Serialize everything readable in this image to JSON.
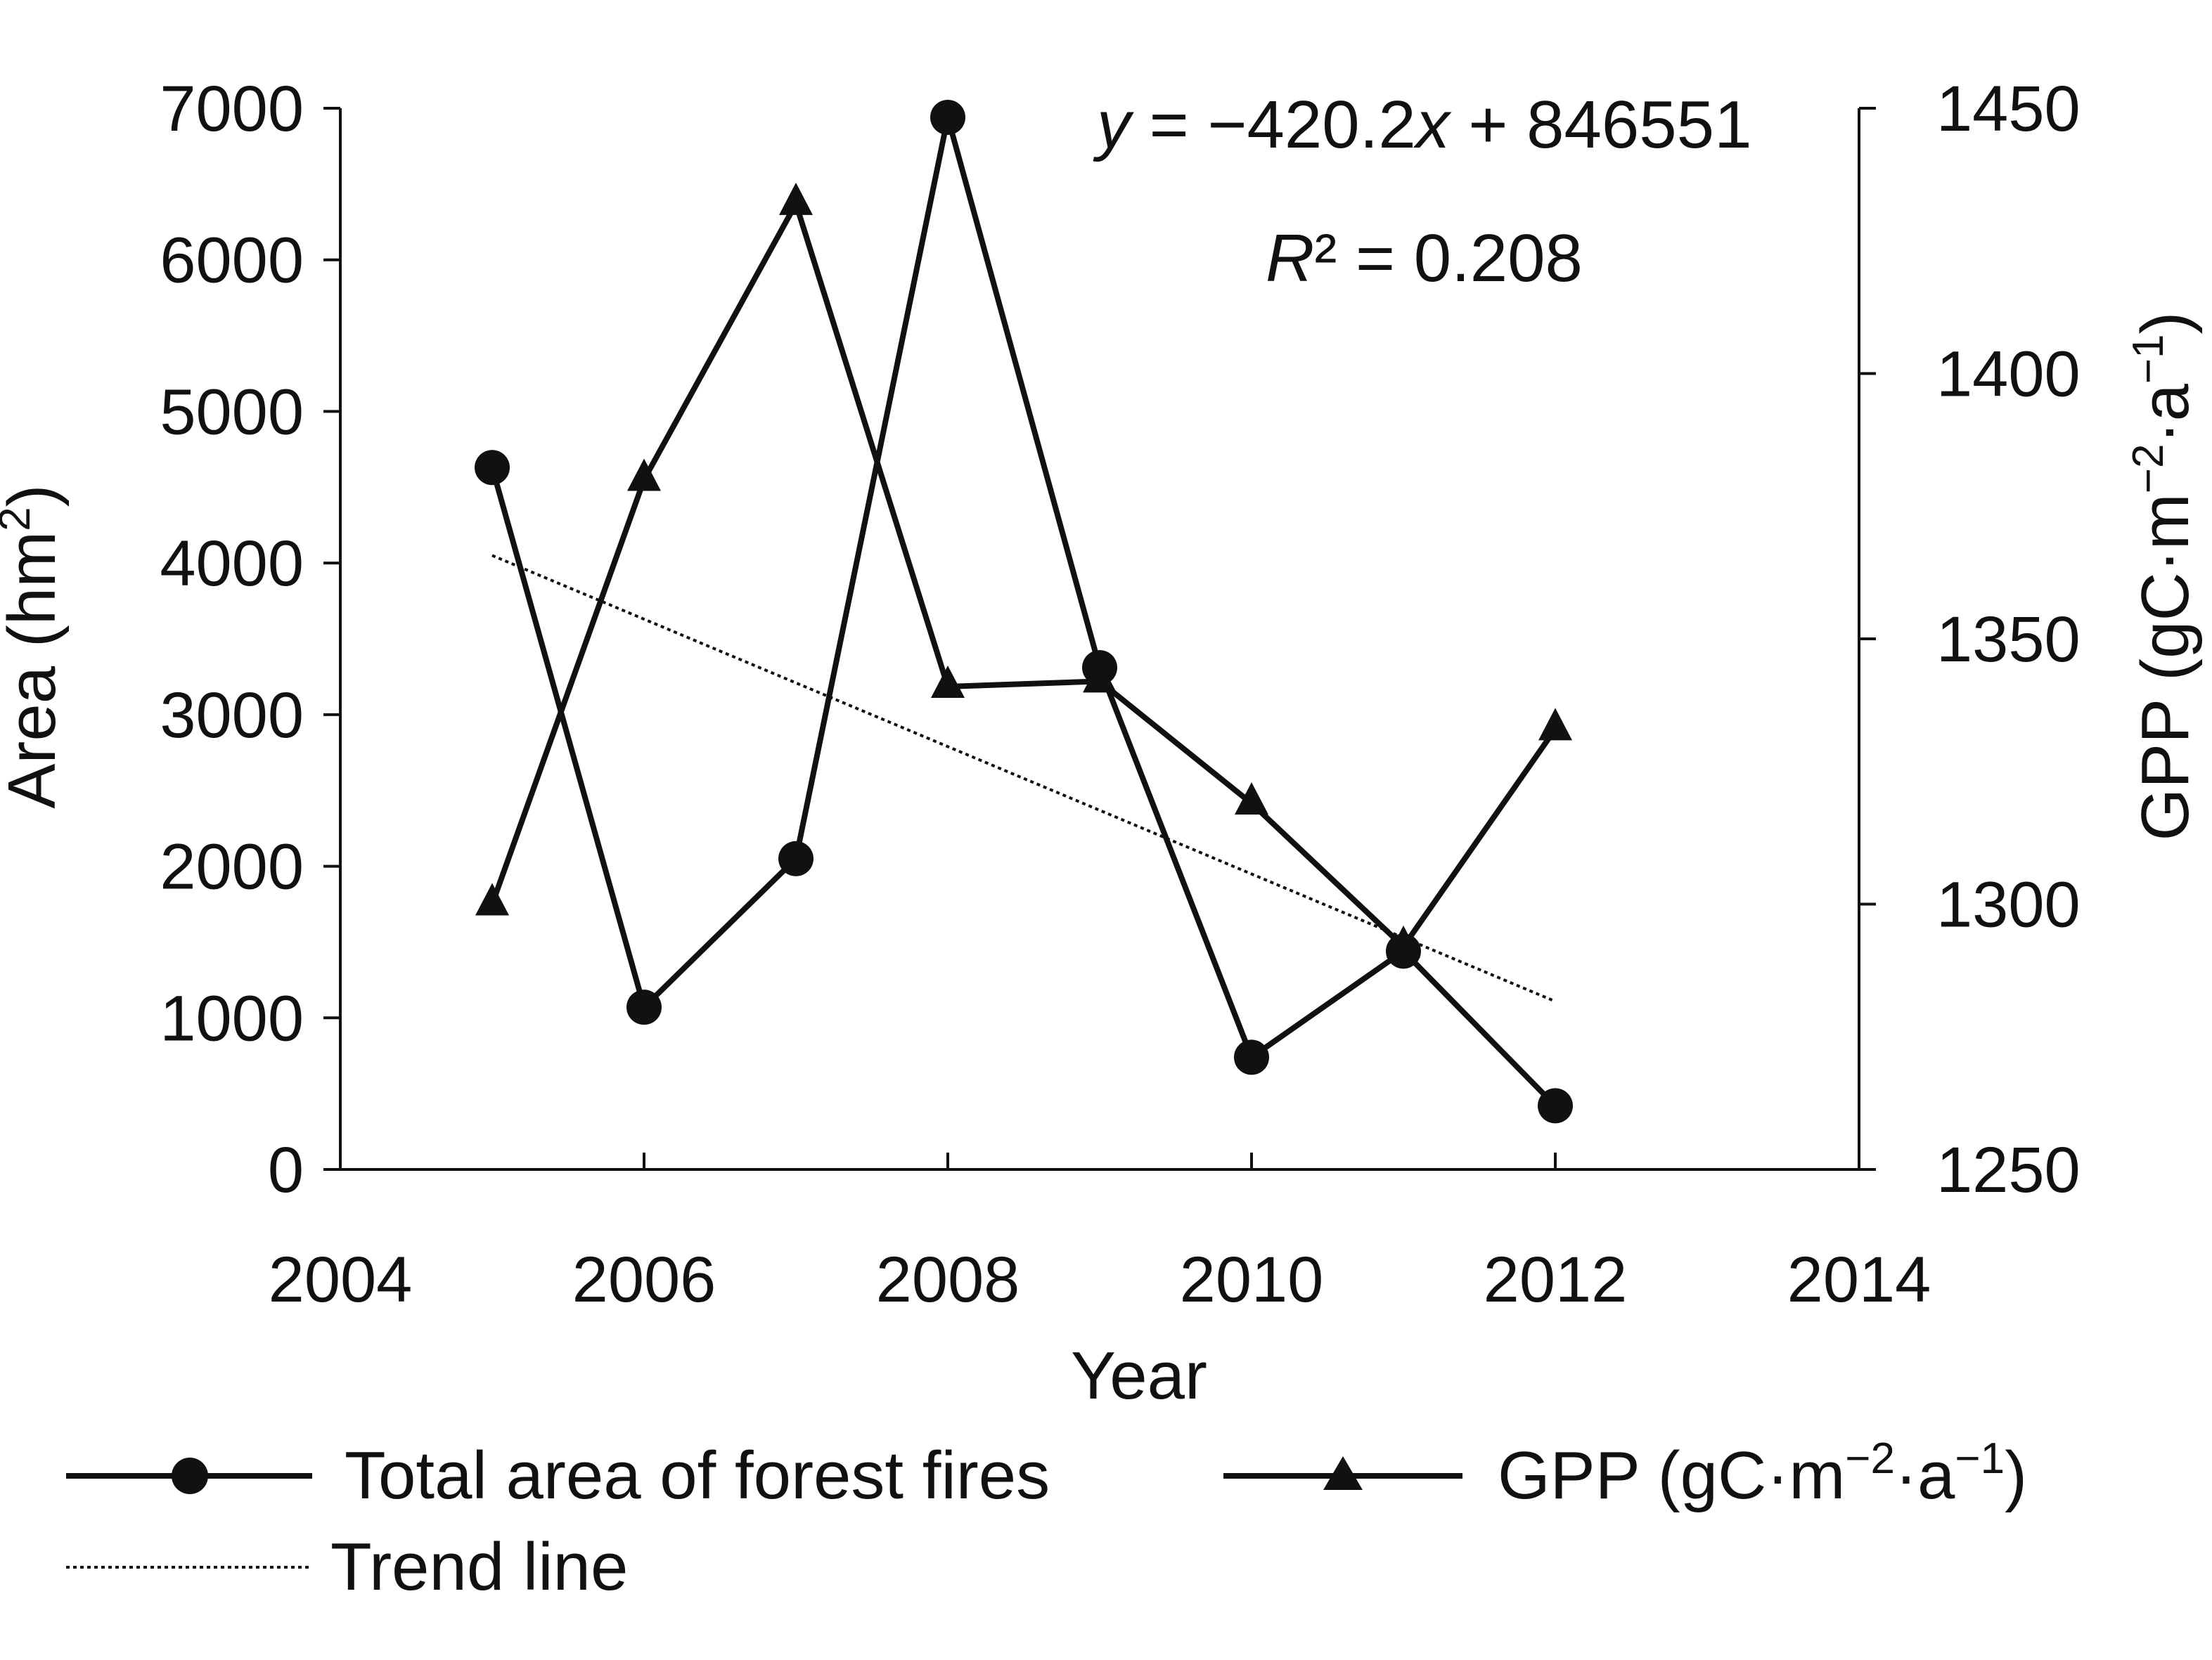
{
  "chart_data": {
    "type": "line",
    "x": [
      2005,
      2006,
      2007,
      2008,
      2009,
      2010,
      2011,
      2012
    ],
    "xlim": [
      2004,
      2014
    ],
    "x_ticks": [
      "2004",
      "2006",
      "2008",
      "2010",
      "2012",
      "2014"
    ],
    "xlabel": "Year",
    "y_left": {
      "label": "Area (hm",
      "label_sup": "2",
      "label_end": ")",
      "lim": [
        0,
        7000
      ],
      "ticks": [
        "0",
        "1000",
        "2000",
        "3000",
        "4000",
        "5000",
        "6000",
        "7000"
      ]
    },
    "y_right": {
      "label": "GPP (gC·m",
      "label_sup1": "−2",
      "label_mid": "·a",
      "label_sup2": "−1",
      "label_end": ")",
      "lim": [
        1250,
        1450
      ],
      "ticks": [
        "1250",
        "1300",
        "1350",
        "1400",
        "1450"
      ]
    },
    "series": [
      {
        "name": "Total area of forest fires",
        "axis": "left",
        "marker": "circle",
        "values": [
          4630,
          1070,
          2050,
          6940,
          3310,
          740,
          1440,
          420
        ]
      },
      {
        "name": "GPP (gC·m−2·a−1)",
        "axis": "right",
        "marker": "triangle",
        "values": [
          1300,
          1380,
          1432,
          1341,
          1342,
          1319,
          1292,
          1333
        ]
      },
      {
        "name": "Trend line",
        "axis": "left",
        "style": "dotted",
        "x_range": [
          2005,
          2012
        ],
        "slope": -420.2,
        "intercept": 846551
      }
    ],
    "annotations": {
      "equation_y": "y",
      "equation_mid": " = −420.2",
      "equation_x": "x",
      "equation_end": " + 846551",
      "r2_r": "R",
      "r2_rest": "² = 0.208"
    },
    "legend": {
      "position": "bottom",
      "items": [
        "Total area of forest fires",
        "GPP (gC·m",
        "−2",
        "·a",
        "−1",
        ")",
        "Trend line"
      ]
    },
    "grid": false,
    "colors": {
      "line": "#111111"
    }
  }
}
